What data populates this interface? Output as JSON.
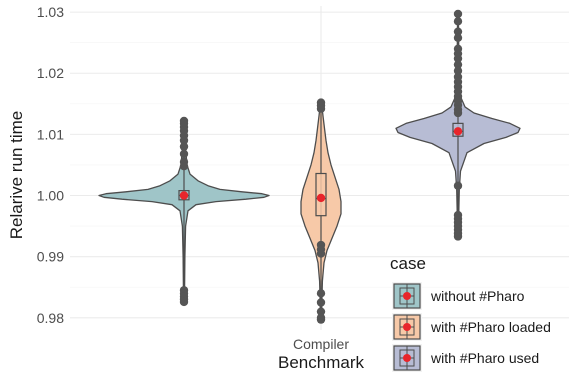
{
  "chart_data": {
    "type": "violin",
    "title": "",
    "xlabel": "Benchmark",
    "ylabel": "Relarive run time",
    "categories": [
      "Compiler"
    ],
    "ylim": [
      0.978,
      1.031
    ],
    "yticks": [
      "0.98",
      "0.99",
      "1.00",
      "1.01",
      "1.02",
      "1.03"
    ],
    "grid": true,
    "legend": {
      "title": "case",
      "position": "bottom-right"
    },
    "series": [
      {
        "name": "without #Pharo",
        "color": "#9fc5c8",
        "stats": {
          "min": 0.9825,
          "q1": 0.9993,
          "median": 1.0,
          "q3": 1.0008,
          "max": 1.012,
          "mean": 1.0
        },
        "outliers": [
          1.0122,
          1.0118,
          1.0112,
          1.0106,
          1.0098,
          1.009,
          1.008,
          1.0068,
          1.0055,
          1.0048,
          0.9845,
          0.984,
          0.9835,
          0.983,
          0.9826
        ]
      },
      {
        "name": "with #Pharo loaded",
        "color": "#f7c9a8",
        "stats": {
          "min": 0.98,
          "q1": 0.9967,
          "median": 0.9995,
          "q3": 1.0036,
          "max": 1.0152,
          "mean": 0.9996
        },
        "outliers": [
          1.0152,
          1.0147,
          1.0142,
          0.9919,
          0.9912,
          0.9905,
          0.984,
          0.9825,
          0.981,
          0.98,
          0.9797
        ]
      },
      {
        "name": "with #Pharo used",
        "color": "#b7bcd4",
        "stats": {
          "min": 0.9935,
          "q1": 1.0097,
          "median": 1.0105,
          "q3": 1.0118,
          "max": 1.0295,
          "mean": 1.0105
        },
        "outliers": [
          1.0297,
          1.0285,
          1.0268,
          1.0258,
          1.024,
          1.0232,
          1.0224,
          1.0214,
          1.0204,
          1.0194,
          1.0186,
          1.0178,
          1.017,
          1.0162,
          1.0155,
          1.0148,
          1.0141,
          1.0135,
          1.0016,
          0.9968,
          0.9962,
          0.9956,
          0.995,
          0.9944,
          0.9938,
          0.9933
        ]
      }
    ],
    "mean_marker_color": "#e8252b"
  }
}
